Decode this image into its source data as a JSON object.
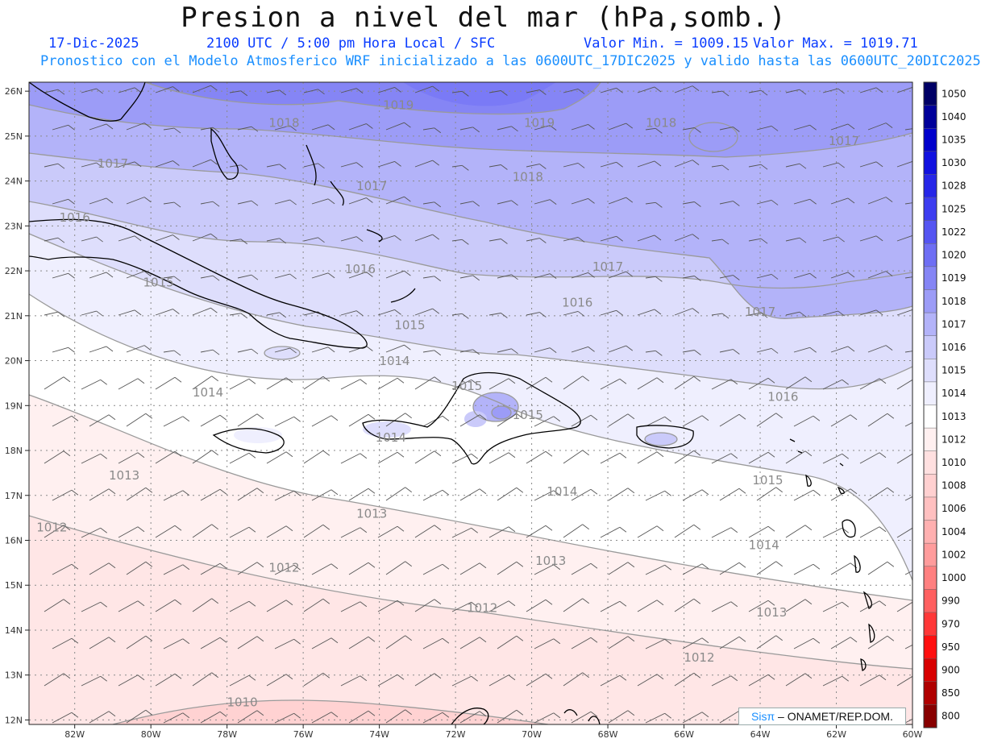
{
  "header": {
    "title": "Presion a nivel del mar (hPa,somb.)",
    "date": "17-Dic-2025",
    "time": "2100 UTC / 5:00 pm Hora Local / SFC",
    "min_label": "Valor Min. = 1009.15",
    "max_label": "Valor Max. = 1019.71",
    "model_line": "Pronostico con el Modelo Atmosferico WRF inicializado a las 0600UTC_17DIC2025 y valido hasta las  0600UTC_20DIC2025"
  },
  "axes": {
    "lat_labels": [
      "26N",
      "25N",
      "24N",
      "23N",
      "22N",
      "21N",
      "20N",
      "19N",
      "18N",
      "17N",
      "16N",
      "15N",
      "14N",
      "13N",
      "12N"
    ],
    "lon_labels": [
      "82W",
      "80W",
      "78W",
      "76W",
      "74W",
      "72W",
      "70W",
      "68W",
      "66W",
      "64W",
      "62W",
      "60W"
    ]
  },
  "isobar_labels": [
    {
      "text": "1019",
      "lon": -73.5,
      "lat": 25.6
    },
    {
      "text": "1019",
      "lon": -69.8,
      "lat": 25.2
    },
    {
      "text": "1018",
      "lon": -66.6,
      "lat": 25.2
    },
    {
      "text": "1018",
      "lon": -76.5,
      "lat": 25.2
    },
    {
      "text": "1018",
      "lon": -70.1,
      "lat": 24.0
    },
    {
      "text": "1017",
      "lon": -81.0,
      "lat": 24.3
    },
    {
      "text": "1017",
      "lon": -74.2,
      "lat": 23.8
    },
    {
      "text": "1017",
      "lon": -68.0,
      "lat": 22.0
    },
    {
      "text": "1017",
      "lon": -61.8,
      "lat": 24.8
    },
    {
      "text": "1017",
      "lon": -64.0,
      "lat": 21.0
    },
    {
      "text": "1016",
      "lon": -82.0,
      "lat": 23.1
    },
    {
      "text": "1016",
      "lon": -74.5,
      "lat": 21.95
    },
    {
      "text": "1016",
      "lon": -68.8,
      "lat": 21.2
    },
    {
      "text": "1016",
      "lon": -63.4,
      "lat": 19.1
    },
    {
      "text": "1015",
      "lon": -79.8,
      "lat": 21.65
    },
    {
      "text": "1015",
      "lon": -73.2,
      "lat": 20.7
    },
    {
      "text": "1015",
      "lon": -71.7,
      "lat": 19.35
    },
    {
      "text": "1015",
      "lon": -70.1,
      "lat": 18.7
    },
    {
      "text": "1015",
      "lon": -63.8,
      "lat": 17.25
    },
    {
      "text": "1014",
      "lon": -73.6,
      "lat": 19.9
    },
    {
      "text": "1014",
      "lon": -78.5,
      "lat": 19.2
    },
    {
      "text": "1014",
      "lon": -73.7,
      "lat": 18.2
    },
    {
      "text": "1014",
      "lon": -69.2,
      "lat": 17.0
    },
    {
      "text": "1014",
      "lon": -63.9,
      "lat": 15.8
    },
    {
      "text": "1013",
      "lon": -80.7,
      "lat": 17.35
    },
    {
      "text": "1013",
      "lon": -74.2,
      "lat": 16.5
    },
    {
      "text": "1013",
      "lon": -69.5,
      "lat": 15.45
    },
    {
      "text": "1013",
      "lon": -63.7,
      "lat": 14.3
    },
    {
      "text": "1012",
      "lon": -82.6,
      "lat": 16.2
    },
    {
      "text": "1012",
      "lon": -76.5,
      "lat": 15.3
    },
    {
      "text": "1012",
      "lon": -71.3,
      "lat": 14.4
    },
    {
      "text": "1012",
      "lon": -65.6,
      "lat": 13.3
    },
    {
      "text": "1010",
      "lon": -77.6,
      "lat": 12.3
    }
  ],
  "colorbar": {
    "levels": [
      "1050",
      "1040",
      "1035",
      "1030",
      "1028",
      "1025",
      "1022",
      "1020",
      "1019",
      "1018",
      "1017",
      "1016",
      "1015",
      "1014",
      "1013",
      "1012",
      "1010",
      "1008",
      "1006",
      "1004",
      "1002",
      "1000",
      "990",
      "970",
      "950",
      "900",
      "850",
      "800"
    ],
    "colors": [
      "#000066",
      "#00009a",
      "#0000cc",
      "#1111e0",
      "#2626e8",
      "#3d3df0",
      "#5555f2",
      "#6e6ef4",
      "#8585f5",
      "#9c9cf7",
      "#b3b3f9",
      "#cacafa",
      "#dedefc",
      "#efeffe",
      "#ffffff",
      "#fff0f0",
      "#ffe0e0",
      "#ffd0d0",
      "#ffc0c0",
      "#ffb0b0",
      "#ff9c9c",
      "#ff8080",
      "#ff6060",
      "#ff3838",
      "#ff0f0f",
      "#d80000",
      "#b00000",
      "#880000"
    ]
  },
  "credit": {
    "sis": "Sisπ",
    "org": "– ONAMET/REP.DOM."
  }
}
